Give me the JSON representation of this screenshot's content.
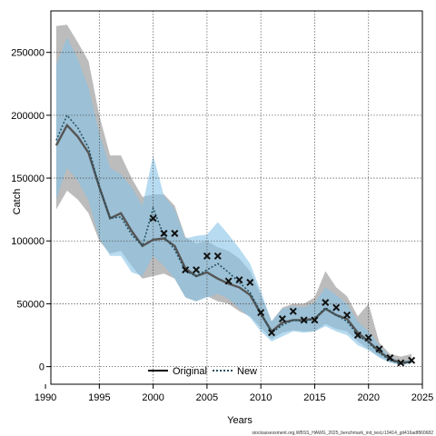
{
  "chart_data": {
    "type": "line",
    "xlabel": "Years",
    "ylabel": "Catch",
    "xlim": [
      1990.5,
      2025
    ],
    "ylim": [
      -14000,
      283000
    ],
    "xticks": [
      1990,
      1995,
      2000,
      2005,
      2010,
      2015,
      2020,
      2025
    ],
    "yticks": [
      0,
      50000,
      100000,
      150000,
      200000,
      250000
    ],
    "ytick_labels": [
      "0",
      "50000",
      "100000",
      "150000",
      "200000",
      "250000"
    ],
    "grid": true,
    "legend_position": "bottom",
    "colors": {
      "original_line": "#555555",
      "original_band": "#a6a6a6",
      "new_line": "#1f4e5f",
      "new_band": "#87c3e6",
      "observed": "#111111"
    },
    "x": [
      1991,
      1992,
      1993,
      1994,
      1995,
      1996,
      1997,
      1998,
      1999,
      2000,
      2001,
      2002,
      2003,
      2004,
      2005,
      2006,
      2007,
      2008,
      2009,
      2010,
      2011,
      2012,
      2013,
      2014,
      2015,
      2016,
      2017,
      2018,
      2019,
      2020,
      2021,
      2022,
      2023,
      2024
    ],
    "series": [
      {
        "name": "Original",
        "style": "solid",
        "values": [
          176000,
          192000,
          183000,
          170000,
          143000,
          118000,
          122000,
          108000,
          96000,
          101000,
          102000,
          96000,
          78000,
          72000,
          75000,
          70000,
          66000,
          63000,
          57000,
          42000,
          28000,
          35000,
          37000,
          37000,
          38000,
          46000,
          41000,
          38000,
          27000,
          20000,
          12000,
          6000,
          3000,
          4000
        ],
        "lower": [
          125000,
          140000,
          133000,
          122000,
          100000,
          90000,
          92000,
          80000,
          70000,
          72000,
          74000,
          70000,
          55000,
          52000,
          56000,
          52000,
          50000,
          44000,
          40000,
          31000,
          22000,
          27000,
          29000,
          28000,
          28000,
          34000,
          30000,
          28000,
          20000,
          14000,
          8000,
          4000,
          2000,
          3000
        ],
        "upper": [
          271000,
          272000,
          258000,
          243000,
          200000,
          168000,
          168000,
          150000,
          135000,
          137000,
          137000,
          128000,
          103000,
          98000,
          100000,
          95000,
          92000,
          86000,
          76000,
          57000,
          36000,
          47000,
          50000,
          50000,
          55000,
          76000,
          63000,
          56000,
          40000,
          50000,
          19000,
          10000,
          8000,
          10000
        ]
      },
      {
        "name": "New",
        "style": "dotted",
        "values": [
          180000,
          200000,
          190000,
          174000,
          143000,
          118000,
          119000,
          105000,
          96000,
          126000,
          104000,
          93000,
          76000,
          72000,
          77000,
          82000,
          75000,
          67000,
          59000,
          43000,
          27000,
          33000,
          37000,
          36000,
          38000,
          47000,
          41000,
          36000,
          25000,
          19000,
          11000,
          5000,
          2000,
          4000
        ],
        "lower": [
          133000,
          158000,
          148000,
          132000,
          102000,
          88000,
          88000,
          75000,
          72000,
          88000,
          80000,
          70000,
          55000,
          52000,
          55000,
          58000,
          54000,
          46000,
          39000,
          28000,
          20000,
          24000,
          28000,
          27000,
          28000,
          32000,
          28000,
          25000,
          17000,
          13000,
          7000,
          3000,
          1500,
          2500
        ],
        "upper": [
          240000,
          262000,
          245000,
          222000,
          186000,
          158000,
          153000,
          143000,
          128000,
          168000,
          136000,
          125000,
          102000,
          104000,
          105000,
          115000,
          105000,
          94000,
          82000,
          60000,
          36000,
          46000,
          48000,
          47000,
          51000,
          63000,
          57000,
          50000,
          36000,
          28000,
          17000,
          8000,
          4000,
          6000
        ]
      }
    ],
    "observed": {
      "marker": "x",
      "x": [
        2000,
        2001,
        2002,
        2003,
        2004,
        2005,
        2006,
        2007,
        2008,
        2009,
        2010,
        2011,
        2012,
        2013,
        2014,
        2015,
        2016,
        2017,
        2018,
        2019,
        2020,
        2021,
        2022,
        2023,
        2024
      ],
      "values": [
        118000,
        106000,
        106000,
        77000,
        77000,
        88000,
        88000,
        68000,
        69000,
        67000,
        43000,
        27000,
        38000,
        44000,
        37000,
        37000,
        51000,
        47000,
        41000,
        25000,
        23000,
        14000,
        7000,
        3000,
        5000
      ]
    },
    "legend": [
      "Original",
      "New"
    ],
    "footnote": "stockassessment.org,WBSS_HAWG_2025_benchmark_init_test,r19414_git416adf860682"
  }
}
